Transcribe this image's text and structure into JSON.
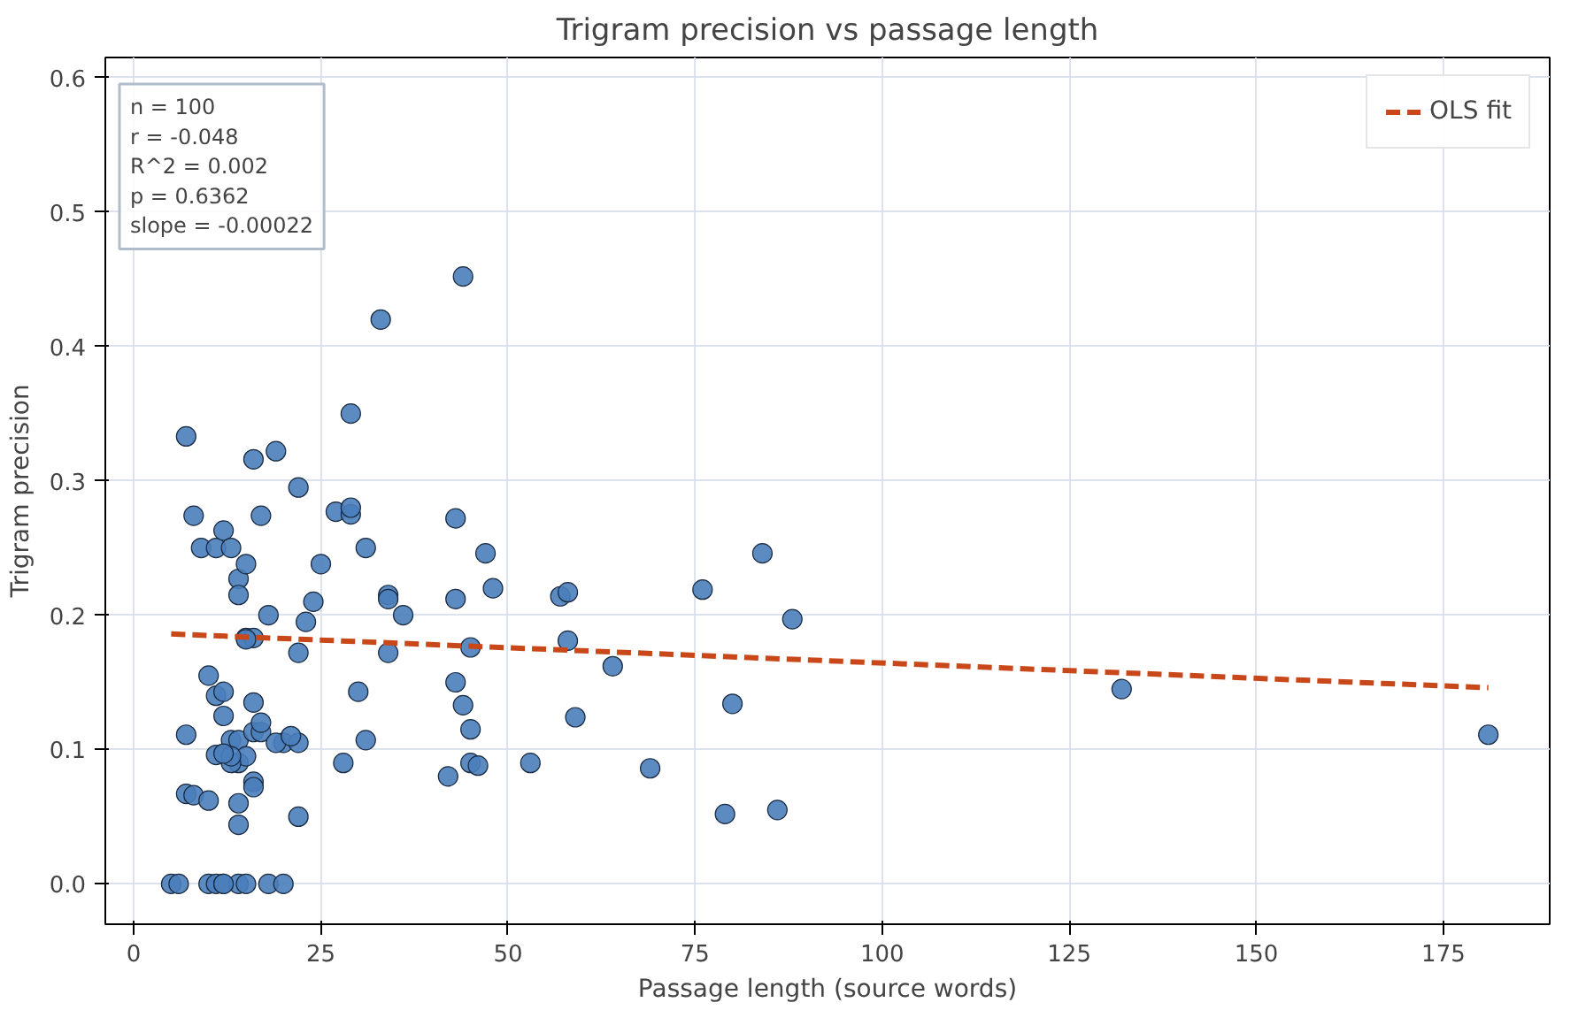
{
  "chart_data": {
    "type": "scatter",
    "title": "Trigram precision vs passage length",
    "xlabel": "Passage length (source words)",
    "ylabel": "Trigram precision",
    "annotations": [
      "n = 100",
      "r = -0.048",
      "R^2 = 0.002",
      "p = 0.6362",
      "slope = -0.00022"
    ],
    "xlim": [
      -3.8,
      189.2
    ],
    "ylim": [
      -0.03,
      0.615
    ],
    "xticks": [
      0,
      25,
      50,
      75,
      100,
      125,
      150,
      175
    ],
    "yticks": [
      {
        "value": 0,
        "label": "0.0"
      },
      0.1,
      0.2,
      0.3,
      0.4,
      0.5,
      0.6
    ],
    "grid": true,
    "legend": "top right",
    "series": [
      {
        "marker": "circle",
        "color": "#4a7ebb",
        "x": [
          7,
          8,
          9,
          11,
          12,
          13,
          14,
          14,
          15,
          16,
          17,
          19,
          22,
          18,
          15,
          16,
          22,
          23,
          24,
          25,
          27,
          29,
          29,
          29,
          31,
          33,
          34,
          34,
          34,
          36,
          30,
          44,
          43,
          43,
          45,
          47,
          48,
          43,
          44,
          45,
          45,
          46,
          42,
          53,
          57,
          58,
          58,
          59,
          64,
          69,
          76,
          79,
          80,
          84,
          86,
          88,
          132,
          181,
          10,
          11,
          12,
          12,
          13,
          14,
          14,
          16,
          16,
          17,
          15,
          13,
          11,
          7,
          7,
          8,
          10,
          14,
          14,
          16,
          16,
          20,
          22,
          22,
          28,
          31,
          5,
          6,
          10,
          11,
          12,
          14,
          18,
          20,
          13,
          15,
          12,
          17,
          19,
          21,
          12,
          15
        ],
        "values": [
          0.333,
          0.274,
          0.25,
          0.25,
          0.263,
          0.25,
          0.227,
          0.215,
          0.238,
          0.316,
          0.274,
          0.322,
          0.295,
          0.2,
          0.183,
          0.183,
          0.172,
          0.195,
          0.21,
          0.238,
          0.277,
          0.35,
          0.275,
          0.28,
          0.25,
          0.42,
          0.215,
          0.212,
          0.172,
          0.2,
          0.143,
          0.452,
          0.272,
          0.212,
          0.176,
          0.246,
          0.22,
          0.15,
          0.133,
          0.115,
          0.09,
          0.088,
          0.08,
          0.09,
          0.214,
          0.217,
          0.181,
          0.124,
          0.162,
          0.086,
          0.219,
          0.052,
          0.134,
          0.246,
          0.055,
          0.197,
          0.145,
          0.111,
          0.155,
          0.14,
          0.143,
          0.125,
          0.107,
          0.09,
          0.107,
          0.135,
          0.113,
          0.113,
          0.095,
          0.09,
          0.096,
          0.111,
          0.067,
          0.066,
          0.062,
          0.06,
          0.044,
          0.076,
          0.072,
          0.105,
          0.105,
          0.05,
          0.09,
          0.107,
          0,
          0,
          0,
          0,
          0,
          0,
          0,
          0,
          0.095,
          0.182,
          0.097,
          0.12,
          0.105,
          0.11,
          0,
          0
        ]
      },
      {
        "type": "line",
        "name": "OLS fit",
        "color": "#c9481a",
        "line_style": "dashed",
        "x": [
          5,
          181
        ],
        "values": [
          0.186,
          0.146
        ]
      }
    ]
  }
}
